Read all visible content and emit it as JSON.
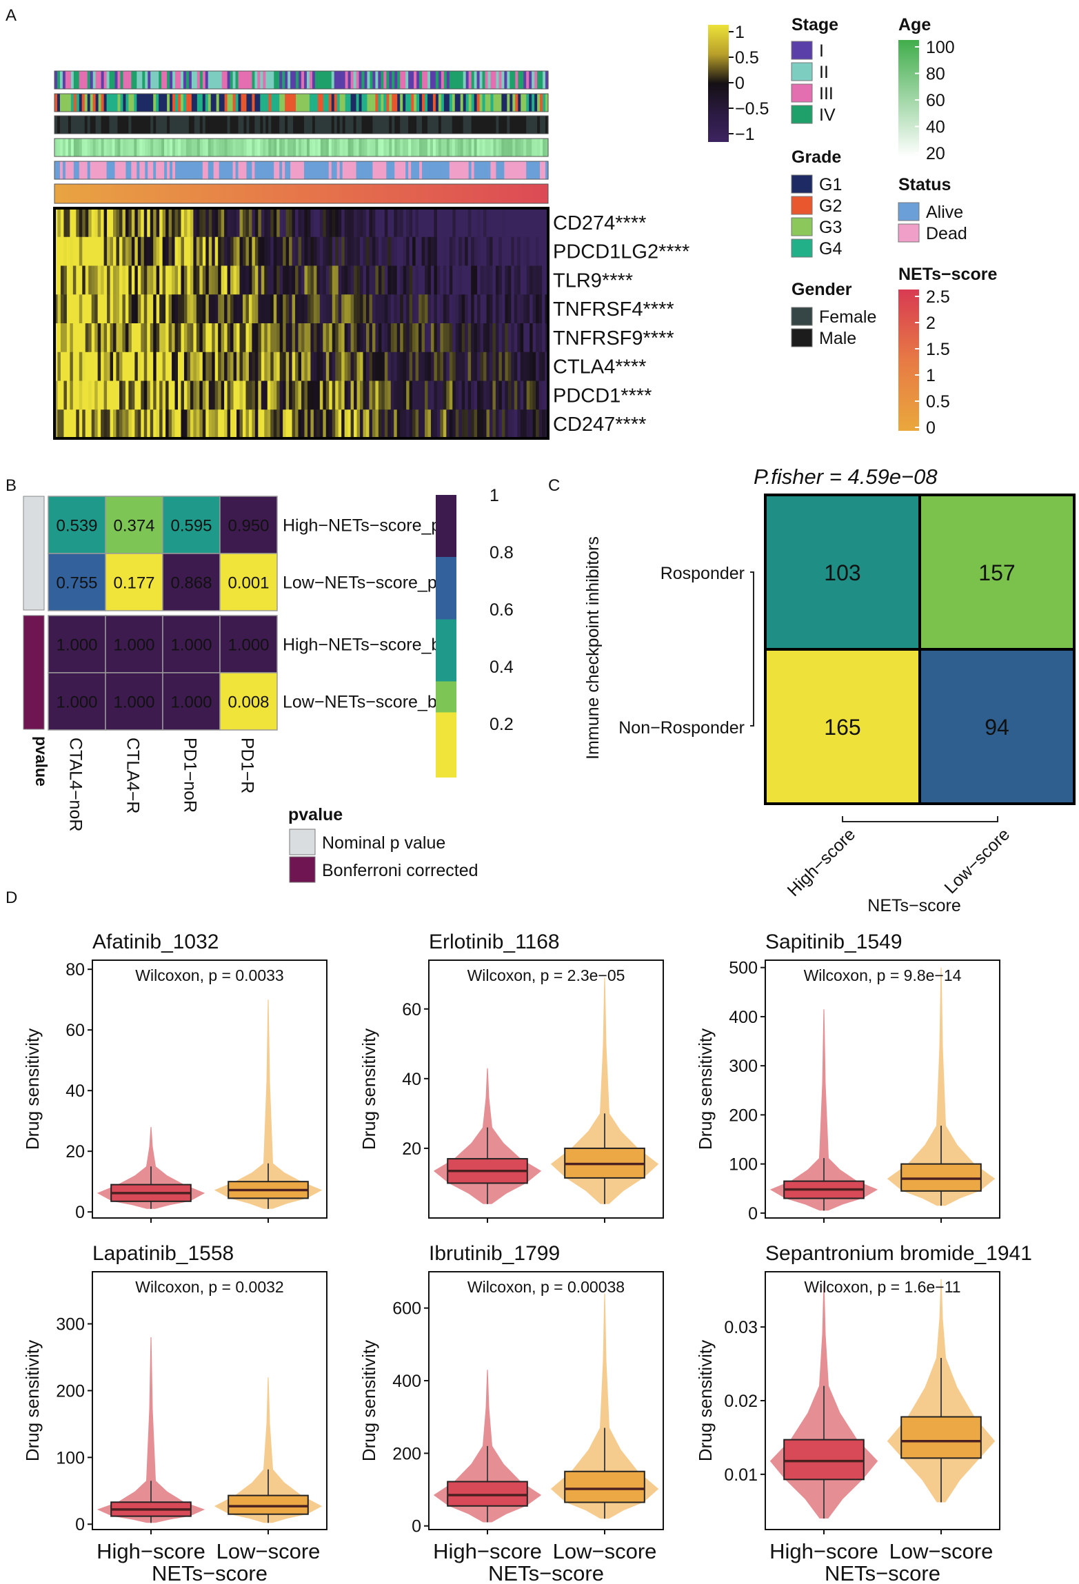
{
  "panels": {
    "A": "A",
    "B": "B",
    "C": "C",
    "D": "D"
  },
  "panel_a": {
    "genes": [
      "CD274****",
      "PDCD1LG2****",
      "TLR9****",
      "TNFRSF4****",
      "TNFRSF9****",
      "CTLA4****",
      "PDCD1****",
      "CD247****"
    ],
    "expression_scale": {
      "labels": [
        "1",
        "0.5",
        "0",
        "−0.5",
        "−1"
      ],
      "colors": [
        "#e8e03a",
        "#1a1020",
        "#3d2460"
      ]
    },
    "legends": {
      "stage": {
        "title": "Stage",
        "items": [
          {
            "label": "I",
            "color": "#5b3fa8"
          },
          {
            "label": "II",
            "color": "#7dcdc0"
          },
          {
            "label": "III",
            "color": "#e46fb0"
          },
          {
            "label": "IV",
            "color": "#1fa06a"
          }
        ]
      },
      "grade": {
        "title": "Grade",
        "items": [
          {
            "label": "G1",
            "color": "#1e2a63"
          },
          {
            "label": "G2",
            "color": "#e8572e"
          },
          {
            "label": "G3",
            "color": "#8bc75a"
          },
          {
            "label": "G4",
            "color": "#21b088"
          }
        ]
      },
      "gender": {
        "title": "Gender",
        "items": [
          {
            "label": "Female",
            "color": "#364646"
          },
          {
            "label": "Male",
            "color": "#1c1c1c"
          }
        ]
      },
      "age": {
        "title": "Age",
        "ticks": [
          "100",
          "80",
          "60",
          "40",
          "20"
        ]
      },
      "status": {
        "title": "Status",
        "items": [
          {
            "label": "Alive",
            "color": "#6a9fd8"
          },
          {
            "label": "Dead",
            "color": "#f0a0c8"
          }
        ]
      },
      "nets_score": {
        "title": "NETs−score",
        "ticks": [
          "2.5",
          "2",
          "1.5",
          "1",
          "0.5",
          "0"
        ]
      }
    }
  },
  "panel_b": {
    "chart_data": {
      "type": "heatmap",
      "columns": [
        "CTAL4−noR",
        "CTLA4−R",
        "PD1−noR",
        "PD1−R"
      ],
      "rows": [
        "High−NETs−score_p",
        "Low−NETs−score_p",
        "High−NETs−score_b",
        "Low−NETs−score_b"
      ],
      "values": [
        [
          "0.539",
          "0.374",
          "0.595",
          "0.950"
        ],
        [
          "0.755",
          "0.177",
          "0.868",
          "0.001"
        ],
        [
          "1.000",
          "1.000",
          "1.000",
          "1.000"
        ],
        [
          "1.000",
          "1.000",
          "1.000",
          "0.008"
        ]
      ],
      "colorbar_ticks": [
        "1",
        "0.8",
        "0.6",
        "0.4",
        "0.2"
      ],
      "annotation_label": "pvalue",
      "legend_title": "pvalue",
      "legend_items": [
        {
          "label": "Nominal p value",
          "color": "#d9dde0"
        },
        {
          "label": "Bonferroni corrected",
          "color": "#6e1552"
        }
      ]
    }
  },
  "panel_c": {
    "chart_data": {
      "type": "heatmap",
      "title_prefix": "P.fisher",
      "title_value": "4.59e−08",
      "ylabel": "Immune checkpoint inhibitors",
      "xlabel": "NETs−score",
      "rows": [
        "Rosponder",
        "Non−Rosponder"
      ],
      "columns": [
        "High−score",
        "Low−score"
      ],
      "values": [
        [
          103,
          157
        ],
        [
          165,
          94
        ]
      ]
    }
  },
  "panel_d": {
    "chart_data": [
      {
        "type": "violin",
        "title": "Afatinib_1032",
        "stat": "Wilcoxon, p = 0.0033",
        "ylabel": "Drug sensitivity",
        "xlabel": "NETs−score",
        "categories": [
          "High−score",
          "Low−score"
        ],
        "ylim": [
          -2,
          83
        ],
        "yticks": [
          {
            "v": 0,
            "l": "0"
          },
          {
            "v": 20,
            "l": "20"
          },
          {
            "v": 40,
            "l": "40"
          },
          {
            "v": 60,
            "l": "60"
          },
          {
            "v": 80,
            "l": "80"
          }
        ],
        "groups": [
          {
            "q1": 3.5,
            "median": 6.2,
            "q3": 9,
            "lo": 1,
            "hi": 15,
            "max": 28
          },
          {
            "q1": 4.5,
            "median": 7.2,
            "q3": 10,
            "lo": 1,
            "hi": 16,
            "max": 70
          }
        ]
      },
      {
        "type": "violin",
        "title": "Erlotinib_1168",
        "stat": "Wilcoxon, p = 2.3e−05",
        "ylabel": "Drug sensitivity",
        "xlabel": "NETs−score",
        "categories": [
          "High−score",
          "Low−score"
        ],
        "ylim": [
          0,
          74
        ],
        "yticks": [
          {
            "v": 20,
            "l": "20"
          },
          {
            "v": 40,
            "l": "40"
          },
          {
            "v": 60,
            "l": "60"
          }
        ],
        "groups": [
          {
            "q1": 10,
            "median": 13.5,
            "q3": 17,
            "lo": 4,
            "hi": 26,
            "max": 43
          },
          {
            "q1": 11.5,
            "median": 15.5,
            "q3": 20,
            "lo": 4,
            "hi": 30,
            "max": 69
          }
        ]
      },
      {
        "type": "violin",
        "title": "Sapitinib_1549",
        "stat": "Wilcoxon, p = 9.8e−14",
        "ylabel": "Drug sensitivity",
        "xlabel": "NETs−score",
        "categories": [
          "High−score",
          "Low−score"
        ],
        "ylim": [
          -10,
          515
        ],
        "yticks": [
          {
            "v": 0,
            "l": "0"
          },
          {
            "v": 100,
            "l": "100"
          },
          {
            "v": 200,
            "l": "200"
          },
          {
            "v": 300,
            "l": "300"
          },
          {
            "v": 400,
            "l": "400"
          },
          {
            "v": 500,
            "l": "500"
          }
        ],
        "groups": [
          {
            "q1": 30,
            "median": 48,
            "q3": 65,
            "lo": 5,
            "hi": 112,
            "max": 415
          },
          {
            "q1": 45,
            "median": 70,
            "q3": 100,
            "lo": 15,
            "hi": 178,
            "max": 500
          }
        ]
      },
      {
        "type": "violin",
        "title": "Lapatinib_1558",
        "stat": "Wilcoxon, p = 0.0032",
        "ylabel": "Drug sensitivity",
        "xlabel": "NETs−score",
        "categories": [
          "High−score",
          "Low−score"
        ],
        "ylim": [
          -8,
          378
        ],
        "yticks": [
          {
            "v": 0,
            "l": "0"
          },
          {
            "v": 100,
            "l": "100"
          },
          {
            "v": 200,
            "l": "200"
          },
          {
            "v": 300,
            "l": "300"
          }
        ],
        "groups": [
          {
            "q1": 12,
            "median": 22,
            "q3": 33,
            "lo": 2,
            "hi": 65,
            "max": 280
          },
          {
            "q1": 15,
            "median": 27,
            "q3": 43,
            "lo": 2,
            "hi": 82,
            "max": 220
          }
        ]
      },
      {
        "type": "violin",
        "title": "Ibrutinib_1799",
        "stat": "Wilcoxon, p = 0.00038",
        "ylabel": "Drug sensitivity",
        "xlabel": "NETs−score",
        "categories": [
          "High−score",
          "Low−score"
        ],
        "ylim": [
          -10,
          700
        ],
        "yticks": [
          {
            "v": 0,
            "l": "0"
          },
          {
            "v": 200,
            "l": "200"
          },
          {
            "v": 400,
            "l": "400"
          },
          {
            "v": 600,
            "l": "600"
          }
        ],
        "groups": [
          {
            "q1": 55,
            "median": 85,
            "q3": 122,
            "lo": 10,
            "hi": 220,
            "max": 430
          },
          {
            "q1": 65,
            "median": 102,
            "q3": 150,
            "lo": 20,
            "hi": 270,
            "max": 640
          }
        ]
      },
      {
        "type": "violin",
        "title": "Sepantronium bromide_1941",
        "stat": "Wilcoxon, p = 1.6e−11",
        "ylabel": "Drug sensitivity",
        "xlabel": "NETs−score",
        "categories": [
          "High−score",
          "Low−score"
        ],
        "ylim": [
          0.0025,
          0.0375
        ],
        "yticks": [
          {
            "v": 0.01,
            "l": "0.01"
          },
          {
            "v": 0.02,
            "l": "0.02"
          },
          {
            "v": 0.03,
            "l": "0.03"
          }
        ],
        "groups": [
          {
            "q1": 0.0093,
            "median": 0.0118,
            "q3": 0.0147,
            "lo": 0.004,
            "hi": 0.022,
            "max": 0.036
          },
          {
            "q1": 0.0122,
            "median": 0.0145,
            "q3": 0.0178,
            "lo": 0.0062,
            "hi": 0.0258,
            "max": 0.0365
          }
        ]
      }
    ]
  }
}
